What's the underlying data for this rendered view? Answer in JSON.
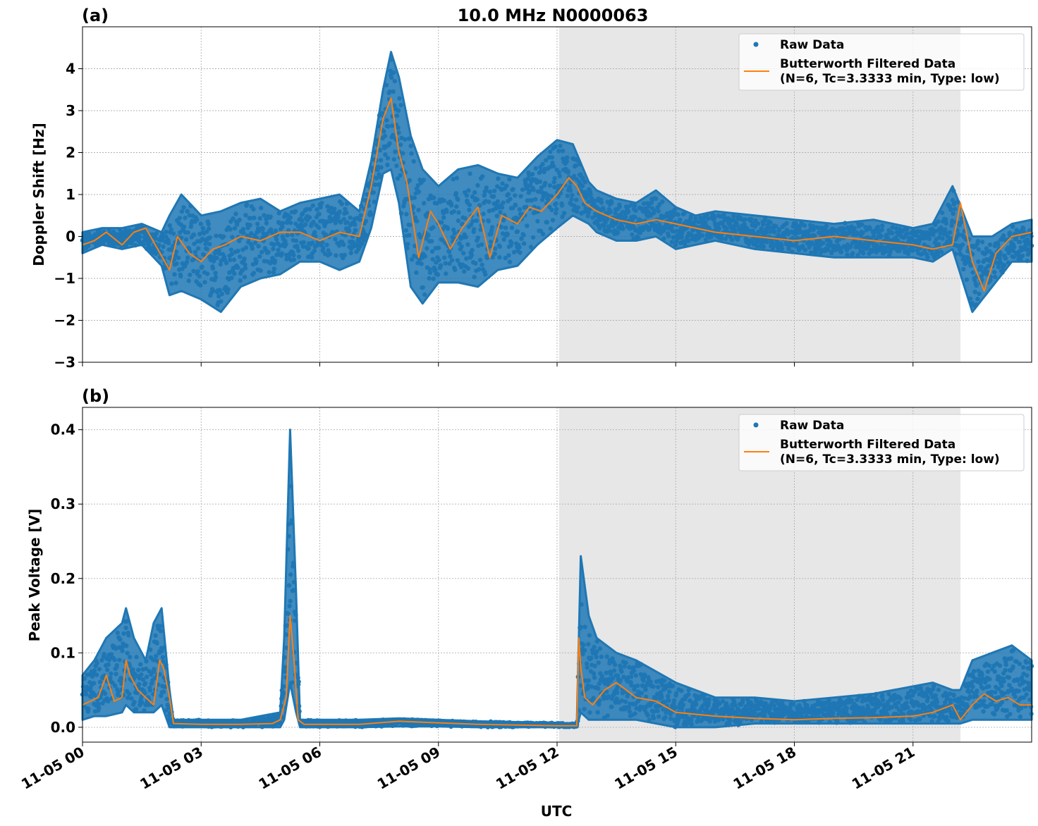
{
  "figure": {
    "title": "10.0 MHz N0000063",
    "xlabel": "UTC",
    "colors": {
      "raw": "#1f77b4",
      "filtered": "#ff7f0e",
      "shade": "#e7e7e7",
      "grid": "#b0b0b0"
    }
  },
  "chart_data": [
    {
      "type": "scatter",
      "panel_label": "(a)",
      "ylabel": "Doppler Shift [Hz]",
      "xlim_hours": [
        0,
        24
      ],
      "ylim": [
        -3,
        5
      ],
      "yticks": [
        -3,
        -2,
        -1,
        0,
        1,
        2,
        3,
        4
      ],
      "ytick_labels": [
        "−3",
        "−2",
        "−1",
        "0",
        "1",
        "2",
        "3",
        "4"
      ],
      "xticks_hours": [
        0,
        3,
        6,
        9,
        12,
        15,
        18,
        21
      ],
      "shaded_region_hours": [
        12.05,
        22.2
      ],
      "legend": {
        "position": "upper right",
        "raw_label": "Raw Data",
        "filtered_label_line1": "Butterworth Filtered Data",
        "filtered_label_line2": "(N=6, Tc=3.3333 min, Type: low)"
      },
      "series": [
        {
          "name": "Raw Data",
          "kind": "scatter-band",
          "x_hours": [
            0,
            0.5,
            1.0,
            1.5,
            2.0,
            2.2,
            2.5,
            3.0,
            3.5,
            4.0,
            4.5,
            5.0,
            5.5,
            6.0,
            6.5,
            7.0,
            7.3,
            7.6,
            7.8,
            8.0,
            8.3,
            8.6,
            9.0,
            9.5,
            10.0,
            10.5,
            11.0,
            11.5,
            12.0,
            12.4,
            12.8,
            13.0,
            13.5,
            14.0,
            14.5,
            15.0,
            15.5,
            16.0,
            17.0,
            18.0,
            19.0,
            20.0,
            21.0,
            21.5,
            22.0,
            22.5,
            23.0,
            23.5,
            24.0
          ],
          "y_upper": [
            0.1,
            0.2,
            0.2,
            0.3,
            0.1,
            0.5,
            1.0,
            0.5,
            0.6,
            0.8,
            0.9,
            0.6,
            0.8,
            0.9,
            1.0,
            0.6,
            1.8,
            3.5,
            4.4,
            3.8,
            2.4,
            1.6,
            1.2,
            1.6,
            1.7,
            1.5,
            1.4,
            1.9,
            2.3,
            2.2,
            1.3,
            1.1,
            0.9,
            0.8,
            1.1,
            0.7,
            0.5,
            0.6,
            0.5,
            0.4,
            0.3,
            0.4,
            0.2,
            0.3,
            1.2,
            0.0,
            0.0,
            0.3,
            0.4
          ],
          "y_lower": [
            -0.4,
            -0.2,
            -0.3,
            -0.2,
            -0.7,
            -1.4,
            -1.3,
            -1.5,
            -1.8,
            -1.2,
            -1.0,
            -0.9,
            -0.6,
            -0.6,
            -0.8,
            -0.6,
            0.2,
            1.5,
            1.6,
            0.8,
            -1.2,
            -1.6,
            -1.1,
            -1.1,
            -1.2,
            -0.8,
            -0.7,
            -0.2,
            0.2,
            0.5,
            0.3,
            0.1,
            -0.1,
            -0.1,
            0.0,
            -0.3,
            -0.2,
            -0.1,
            -0.3,
            -0.4,
            -0.5,
            -0.5,
            -0.5,
            -0.6,
            -0.3,
            -1.8,
            -1.2,
            -0.6,
            -0.6
          ]
        },
        {
          "name": "Butterworth Filtered Data",
          "kind": "line",
          "x_hours": [
            0,
            0.3,
            0.6,
            1.0,
            1.3,
            1.6,
            1.9,
            2.2,
            2.4,
            2.7,
            3.0,
            3.3,
            3.6,
            4.0,
            4.5,
            5.0,
            5.5,
            6.0,
            6.5,
            7.0,
            7.3,
            7.6,
            7.8,
            8.0,
            8.2,
            8.5,
            8.8,
            9.0,
            9.3,
            9.6,
            10.0,
            10.3,
            10.6,
            11.0,
            11.3,
            11.6,
            12.0,
            12.3,
            12.5,
            12.7,
            13.0,
            13.5,
            14.0,
            14.5,
            15.0,
            15.5,
            16.0,
            17.0,
            18.0,
            19.0,
            20.0,
            21.0,
            21.5,
            22.0,
            22.2,
            22.5,
            22.8,
            23.1,
            23.5,
            24.0
          ],
          "y": [
            -0.2,
            -0.1,
            0.1,
            -0.2,
            0.1,
            0.2,
            -0.3,
            -0.8,
            0.0,
            -0.4,
            -0.6,
            -0.3,
            -0.2,
            0.0,
            -0.1,
            0.1,
            0.1,
            -0.1,
            0.1,
            0.0,
            1.2,
            2.8,
            3.3,
            2.0,
            1.3,
            -0.5,
            0.6,
            0.3,
            -0.3,
            0.2,
            0.7,
            -0.5,
            0.5,
            0.3,
            0.7,
            0.6,
            1.0,
            1.4,
            1.2,
            0.8,
            0.6,
            0.4,
            0.3,
            0.4,
            0.3,
            0.2,
            0.1,
            0.0,
            -0.1,
            0.0,
            -0.1,
            -0.2,
            -0.3,
            -0.2,
            0.8,
            -0.6,
            -1.3,
            -0.4,
            0.0,
            0.1
          ]
        }
      ]
    },
    {
      "type": "scatter",
      "panel_label": "(b)",
      "ylabel": "Peak Voltage [V]",
      "xlim_hours": [
        0,
        24
      ],
      "ylim": [
        -0.02,
        0.43
      ],
      "yticks": [
        0.0,
        0.1,
        0.2,
        0.3,
        0.4
      ],
      "ytick_labels": [
        "0.0",
        "0.1",
        "0.2",
        "0.3",
        "0.4"
      ],
      "xticks_hours": [
        0,
        3,
        6,
        9,
        12,
        15,
        18,
        21
      ],
      "xtick_labels": [
        "11-05 00",
        "11-05 03",
        "11-05 06",
        "11-05 09",
        "11-05 12",
        "11-05 15",
        "11-05 18",
        "11-05 21"
      ],
      "shaded_region_hours": [
        12.05,
        22.2
      ],
      "legend": {
        "position": "upper right",
        "raw_label": "Raw Data",
        "filtered_label_line1": "Butterworth Filtered Data",
        "filtered_label_line2": "(N=6, Tc=3.3333 min, Type: low)"
      },
      "series": [
        {
          "name": "Raw Data",
          "kind": "scatter-band",
          "x_hours": [
            0,
            0.3,
            0.6,
            1.0,
            1.1,
            1.3,
            1.6,
            1.8,
            2.0,
            2.2,
            2.3,
            3.0,
            4.0,
            5.0,
            5.1,
            5.25,
            5.4,
            5.5,
            6.0,
            7.0,
            8.0,
            9.0,
            10.0,
            11.0,
            12.0,
            12.5,
            12.6,
            12.8,
            13.0,
            13.5,
            14.0,
            15.0,
            16.0,
            17.0,
            18.0,
            19.0,
            20.0,
            21.0,
            21.5,
            22.0,
            22.2,
            22.5,
            23.0,
            23.5,
            24.0
          ],
          "y_upper": [
            0.07,
            0.09,
            0.12,
            0.14,
            0.16,
            0.12,
            0.09,
            0.14,
            0.16,
            0.05,
            0.01,
            0.01,
            0.01,
            0.02,
            0.12,
            0.4,
            0.18,
            0.01,
            0.01,
            0.01,
            0.012,
            0.01,
            0.008,
            0.007,
            0.006,
            0.005,
            0.23,
            0.15,
            0.12,
            0.1,
            0.09,
            0.06,
            0.04,
            0.04,
            0.035,
            0.04,
            0.045,
            0.055,
            0.06,
            0.05,
            0.05,
            0.09,
            0.1,
            0.11,
            0.09
          ],
          "y_lower": [
            0.01,
            0.015,
            0.015,
            0.02,
            0.03,
            0.02,
            0.02,
            0.02,
            0.03,
            0.0,
            0.0,
            0.0,
            0.0,
            0.0,
            0.01,
            0.06,
            0.02,
            0.0,
            0.0,
            0.0,
            0.001,
            0.001,
            0.0,
            0.0,
            0.0,
            0.0,
            0.02,
            0.01,
            0.01,
            0.01,
            0.01,
            0.0,
            0.0,
            0.005,
            0.005,
            0.005,
            0.005,
            0.005,
            0.005,
            0.005,
            0.005,
            0.01,
            0.01,
            0.01,
            0.01
          ]
        },
        {
          "name": "Butterworth Filtered Data",
          "kind": "line",
          "x_hours": [
            0,
            0.2,
            0.4,
            0.6,
            0.8,
            1.0,
            1.1,
            1.2,
            1.4,
            1.6,
            1.8,
            1.95,
            2.05,
            2.2,
            2.3,
            3.0,
            4.0,
            4.8,
            5.0,
            5.15,
            5.25,
            5.35,
            5.45,
            5.6,
            6.0,
            7.0,
            8.0,
            8.5,
            9.0,
            10.0,
            11.0,
            12.0,
            12.5,
            12.55,
            12.6,
            12.7,
            12.9,
            13.2,
            13.5,
            14.0,
            14.5,
            15.0,
            16.0,
            17.0,
            18.0,
            19.0,
            20.0,
            21.0,
            21.5,
            22.0,
            22.2,
            22.5,
            22.8,
            23.1,
            23.4,
            23.7,
            24.0
          ],
          "y": [
            0.03,
            0.035,
            0.04,
            0.07,
            0.035,
            0.04,
            0.09,
            0.07,
            0.05,
            0.04,
            0.03,
            0.09,
            0.08,
            0.04,
            0.005,
            0.004,
            0.004,
            0.005,
            0.01,
            0.04,
            0.15,
            0.09,
            0.01,
            0.004,
            0.004,
            0.004,
            0.008,
            0.007,
            0.006,
            0.004,
            0.003,
            0.002,
            0.002,
            0.12,
            0.08,
            0.04,
            0.03,
            0.05,
            0.06,
            0.04,
            0.035,
            0.02,
            0.015,
            0.012,
            0.01,
            0.012,
            0.013,
            0.015,
            0.02,
            0.03,
            0.01,
            0.03,
            0.045,
            0.035,
            0.04,
            0.03,
            0.03
          ]
        }
      ]
    }
  ]
}
